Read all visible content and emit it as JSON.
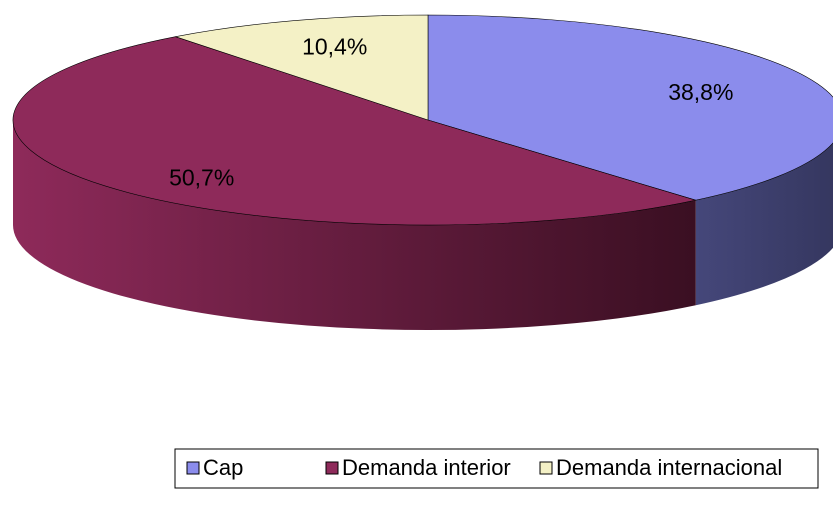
{
  "chart_data": {
    "type": "pie",
    "categories": [
      "Cap",
      "Demanda interior",
      "Demanda internacional"
    ],
    "values": [
      38.8,
      50.7,
      10.4
    ],
    "value_labels": [
      "38,8%",
      "50,7%",
      "10,4%"
    ],
    "colors": [
      "#8b8cec",
      "#8e2a5a",
      "#f4f1c6"
    ],
    "legend": "bottom"
  }
}
